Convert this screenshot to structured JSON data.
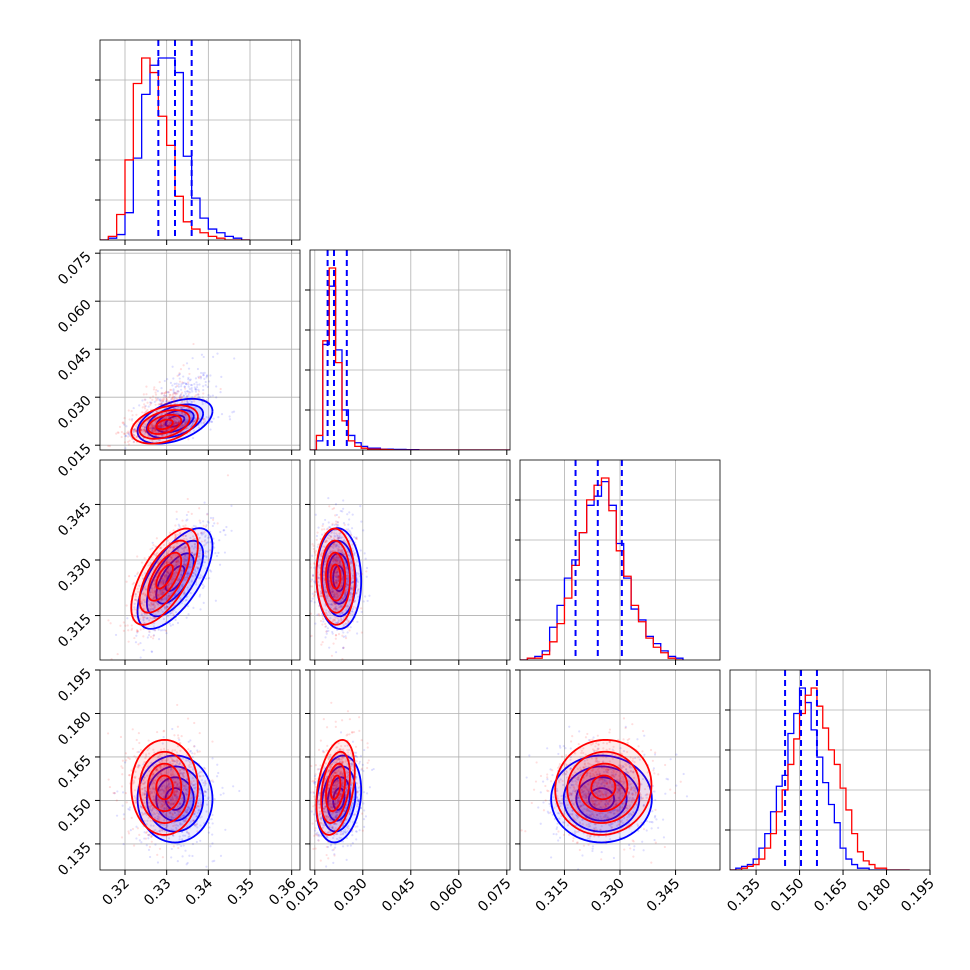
{
  "chart_data": {
    "type": "corner",
    "parameters": [
      {
        "range": [
          0.314,
          0.362
        ],
        "ticks": [
          "0.32",
          "0.33",
          "0.34",
          "0.35",
          "0.36"
        ],
        "quantiles": [
          0.328,
          0.332,
          0.336
        ],
        "hist_edges": [
          0.314,
          0.316,
          0.318,
          0.32,
          0.322,
          0.324,
          0.326,
          0.328,
          0.33,
          0.332,
          0.334,
          0.336,
          0.338,
          0.34,
          0.342,
          0.344,
          0.346,
          0.348,
          0.35
        ],
        "hist_blue": [
          0,
          1,
          3,
          15,
          45,
          80,
          96,
          100,
          100,
          92,
          46,
          23,
          12,
          6,
          4,
          2,
          1,
          0
        ],
        "hist_red": [
          0,
          2,
          14,
          44,
          86,
          100,
          92,
          68,
          52,
          24,
          10,
          6,
          4,
          2,
          1,
          0,
          0,
          0
        ]
      },
      {
        "range": [
          0.0135,
          0.076
        ],
        "ticks": [
          "0.015",
          "0.030",
          "0.045",
          "0.060",
          "0.075"
        ],
        "quantiles": [
          0.019,
          0.021,
          0.025
        ],
        "hist_edges": [
          0.0135,
          0.0155,
          0.0175,
          0.0195,
          0.0215,
          0.0235,
          0.0255,
          0.0275,
          0.0295,
          0.0315,
          0.0335,
          0.0355,
          0.0375,
          0.0395,
          0.0415,
          0.0435,
          0.0455,
          0.0475,
          0.0495,
          0.0515,
          0.0535,
          0.0555,
          0.0575,
          0.0595,
          0.0615,
          0.0635,
          0.0655,
          0.0675,
          0.0695,
          0.0715,
          0.0735,
          0.076
        ],
        "hist_blue": [
          0,
          5,
          58,
          90,
          55,
          22,
          8,
          4,
          2,
          1,
          1,
          0.5,
          0.5,
          0.3,
          0.3,
          0.2,
          0.2,
          0,
          0,
          0,
          0,
          0,
          0,
          0,
          0,
          0,
          0,
          0,
          0,
          0,
          0
        ],
        "hist_red": [
          0,
          8,
          60,
          100,
          48,
          16,
          5,
          2,
          1,
          0.5,
          0.5,
          0.3,
          0.2,
          0,
          0,
          0,
          0,
          0,
          0,
          0,
          0,
          0,
          0,
          0,
          0,
          0,
          0,
          0,
          0,
          0,
          0
        ]
      },
      {
        "range": [
          0.303,
          0.357
        ],
        "ticks": [
          "0.315",
          "0.330",
          "0.345"
        ],
        "quantiles": [
          0.318,
          0.324,
          0.3305
        ],
        "hist_edges": [
          0.303,
          0.305,
          0.307,
          0.309,
          0.311,
          0.313,
          0.315,
          0.317,
          0.319,
          0.321,
          0.323,
          0.325,
          0.327,
          0.329,
          0.331,
          0.333,
          0.335,
          0.337,
          0.339,
          0.341,
          0.343,
          0.345,
          0.347
        ],
        "hist_blue": [
          0,
          1,
          2,
          5,
          18,
          30,
          45,
          55,
          70,
          85,
          90,
          98,
          85,
          64,
          45,
          28,
          22,
          13,
          9,
          5,
          2,
          1
        ],
        "hist_red": [
          0,
          1,
          1,
          3,
          10,
          20,
          34,
          52,
          70,
          88,
          96,
          100,
          82,
          60,
          46,
          30,
          21,
          12,
          7,
          4,
          1,
          0
        ]
      },
      {
        "range": [
          0.126,
          0.195
        ],
        "ticks": [
          "0.135",
          "0.150",
          "0.165",
          "0.180",
          "0.195"
        ],
        "quantiles": [
          0.145,
          0.1505,
          0.156
        ],
        "hist_edges": [
          0.126,
          0.128,
          0.13,
          0.132,
          0.134,
          0.136,
          0.138,
          0.14,
          0.142,
          0.144,
          0.146,
          0.148,
          0.15,
          0.152,
          0.154,
          0.156,
          0.158,
          0.16,
          0.162,
          0.164,
          0.166,
          0.168,
          0.17,
          0.172,
          0.174,
          0.176,
          0.178,
          0.18,
          0.182,
          0.184,
          0.186,
          0.188
        ],
        "hist_blue": [
          0,
          1,
          2,
          3,
          6,
          12,
          20,
          32,
          46,
          52,
          75,
          86,
          100,
          92,
          77,
          62,
          48,
          36,
          26,
          12,
          6,
          3,
          1,
          1,
          0,
          0,
          0,
          0,
          0,
          0,
          0
        ],
        "hist_red": [
          0,
          0,
          1,
          2,
          3,
          6,
          12,
          20,
          32,
          44,
          58,
          72,
          86,
          96,
          100,
          90,
          78,
          66,
          58,
          45,
          33,
          20,
          10,
          5,
          3,
          1,
          1,
          0,
          0,
          0,
          0
        ]
      }
    ],
    "distributions": {
      "blue": {
        "color": "#0000ff",
        "means": [
          0.332,
          0.0225,
          0.325,
          0.1505
        ],
        "stds": [
          0.0045,
          0.0035,
          0.0068,
          0.0075
        ],
        "correlations": [
          [
            0,
            1,
            0.45
          ],
          [
            0,
            2,
            0.65
          ],
          [
            0,
            3,
            0.0
          ],
          [
            1,
            2,
            -0.05
          ],
          [
            1,
            3,
            0.2
          ],
          [
            2,
            3,
            0.0
          ]
        ]
      },
      "red": {
        "color": "#ff0000",
        "means": [
          0.3295,
          0.0215,
          0.3255,
          0.1545
        ],
        "stds": [
          0.004,
          0.003,
          0.0065,
          0.0082
        ],
        "correlations": [
          [
            0,
            1,
            0.4
          ],
          [
            0,
            2,
            0.65
          ],
          [
            0,
            3,
            0.0
          ],
          [
            1,
            2,
            -0.05
          ],
          [
            1,
            3,
            0.35
          ],
          [
            2,
            3,
            0.05
          ]
        ]
      }
    },
    "quantile_color": "#0000ff",
    "grid": true,
    "title": "",
    "legend": ""
  }
}
